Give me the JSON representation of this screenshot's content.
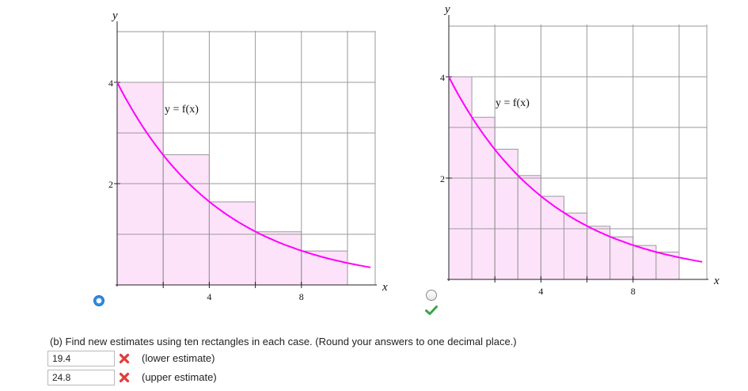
{
  "graphs": [
    {
      "id": "graph-left",
      "axis_labels": {
        "x": "x",
        "y": "y"
      },
      "x_tick_labels": [
        "4",
        "8"
      ],
      "y_tick_labels": [
        "2",
        "4"
      ],
      "curve_label": "y = f(x)",
      "rectangle_count": 5,
      "selected": true
    },
    {
      "id": "graph-right",
      "axis_labels": {
        "x": "x",
        "y": "y"
      },
      "x_tick_labels": [
        "4",
        "8"
      ],
      "y_tick_labels": [
        "2",
        "4"
      ],
      "curve_label": "y = f(x)",
      "rectangle_count": 10,
      "selected": false,
      "marked_correct": true
    }
  ],
  "chart_data": [
    {
      "type": "area",
      "function": "f(x) = 4e^(-x/4.5)",
      "xlim": [
        0,
        11
      ],
      "ylim": [
        0,
        5.4
      ],
      "xticks": [
        4,
        8
      ],
      "yticks": [
        2,
        4
      ],
      "grid": true,
      "rectangles": {
        "width": 2,
        "heights": [
          4.0,
          2.57,
          1.64,
          1.05,
          0.67
        ],
        "endpoint": "left"
      }
    },
    {
      "type": "area",
      "function": "f(x) = 4e^(-x/4.5)",
      "xlim": [
        0,
        11
      ],
      "ylim": [
        0,
        5.4
      ],
      "xticks": [
        4,
        8
      ],
      "yticks": [
        2,
        4
      ],
      "grid": true,
      "rectangles": {
        "width": 1,
        "heights": [
          4.0,
          3.2,
          2.57,
          2.05,
          1.64,
          1.31,
          1.05,
          0.84,
          0.67,
          0.54
        ],
        "endpoint": "left"
      }
    }
  ],
  "colors": {
    "curve": "#ff00ff",
    "rect_fill": "#fde3fa",
    "rect_stroke": "#999999",
    "grid": "#9a9a9a",
    "radio_selected": "#2f8ce6",
    "check": "#3aa54a",
    "x_mark": "#e23b3b"
  },
  "question": "(b) Find new estimates using ten rectangles in each case. (Round your answers to one decimal place.)",
  "answers": [
    {
      "value": "19.4",
      "label": "(lower estimate)",
      "status": "incorrect"
    },
    {
      "value": "24.8",
      "label": "(upper estimate)",
      "status": "incorrect"
    }
  ]
}
